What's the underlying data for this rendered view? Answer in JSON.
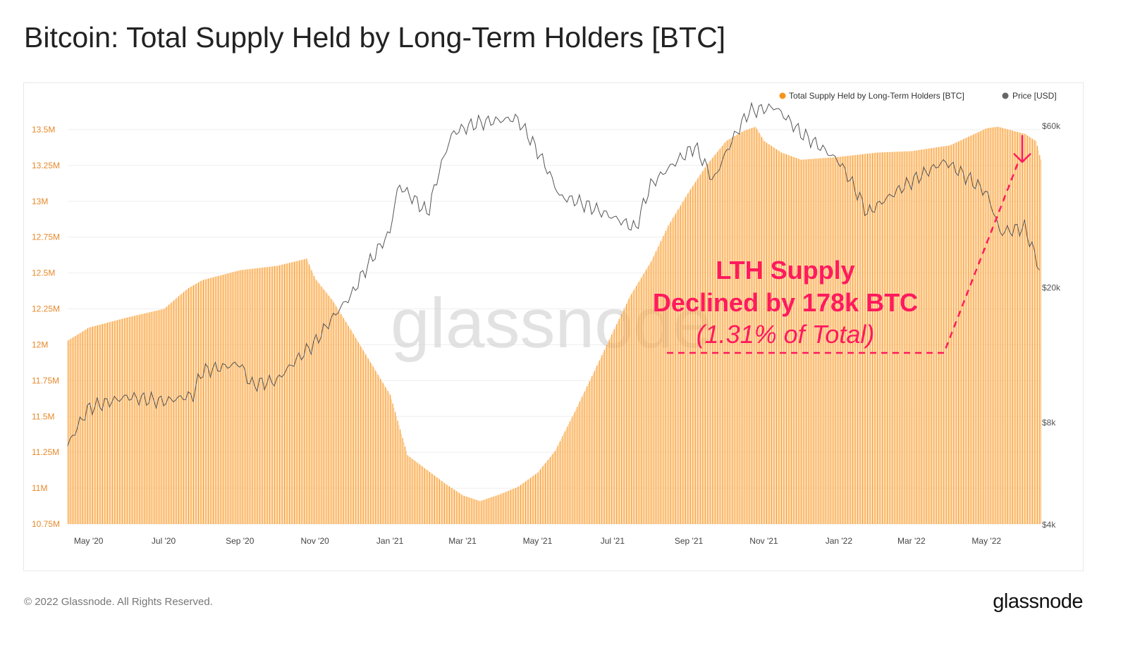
{
  "title": "Bitcoin: Total Supply Held by Long-Term Holders [BTC]",
  "footer": {
    "copyright": "© 2022 Glassnode. All Rights Reserved.",
    "logo": "glassnode",
    "watermark": "glassnode"
  },
  "chart_data": {
    "type": "bar",
    "title": "Bitcoin: Total Supply Held by Long-Term Holders [BTC]",
    "legend": {
      "placement": "top-right",
      "items": [
        {
          "label": "Total Supply Held by Long-Term Holders [BTC]",
          "color": "#f7931a"
        },
        {
          "label": "Price [USD]",
          "color": "#666666"
        }
      ]
    },
    "x_range": [
      "2020-04-14",
      "2022-06-14"
    ],
    "x_ticks": [
      {
        "date": "2020-05-01",
        "label": "May '20"
      },
      {
        "date": "2020-07-01",
        "label": "Jul '20"
      },
      {
        "date": "2020-09-01",
        "label": "Sep '20"
      },
      {
        "date": "2020-11-01",
        "label": "Nov '20"
      },
      {
        "date": "2021-01-01",
        "label": "Jan '21"
      },
      {
        "date": "2021-03-01",
        "label": "Mar '21"
      },
      {
        "date": "2021-05-01",
        "label": "May '21"
      },
      {
        "date": "2021-07-01",
        "label": "Jul '21"
      },
      {
        "date": "2021-09-01",
        "label": "Sep '21"
      },
      {
        "date": "2021-11-01",
        "label": "Nov '21"
      },
      {
        "date": "2022-01-01",
        "label": "Jan '22"
      },
      {
        "date": "2022-03-01",
        "label": "Mar '22"
      },
      {
        "date": "2022-05-01",
        "label": "May '22"
      }
    ],
    "y_left": {
      "range": [
        10750000,
        13500000
      ],
      "ticks": [
        {
          "v": 13500000,
          "label": "13.5M"
        },
        {
          "v": 13250000,
          "label": "13.25M"
        },
        {
          "v": 13000000,
          "label": "13M"
        },
        {
          "v": 12750000,
          "label": "12.75M"
        },
        {
          "v": 12500000,
          "label": "12.5M"
        },
        {
          "v": 12250000,
          "label": "12.25M"
        },
        {
          "v": 12000000,
          "label": "12M"
        },
        {
          "v": 11750000,
          "label": "11.75M"
        },
        {
          "v": 11500000,
          "label": "11.5M"
        },
        {
          "v": 11250000,
          "label": "11.25M"
        },
        {
          "v": 11000000,
          "label": "11M"
        },
        {
          "v": 10750000,
          "label": "10.75M"
        }
      ]
    },
    "y_right": {
      "scale": "log",
      "range": [
        4000,
        60000
      ],
      "ticks": [
        {
          "v": 60000,
          "label": "$60k"
        },
        {
          "v": 20000,
          "label": "$20k"
        },
        {
          "v": 8000,
          "label": "$8k"
        },
        {
          "v": 4000,
          "label": "$4k"
        }
      ]
    },
    "series": [
      {
        "name": "Total Supply Held by Long-Term Holders [BTC]",
        "type": "bar",
        "color": "#f7931a",
        "points": [
          [
            "2020-04-14",
            12030000
          ],
          [
            "2020-05-01",
            12120000
          ],
          [
            "2020-06-01",
            12190000
          ],
          [
            "2020-07-01",
            12250000
          ],
          [
            "2020-07-20",
            12390000
          ],
          [
            "2020-08-01",
            12450000
          ],
          [
            "2020-09-01",
            12520000
          ],
          [
            "2020-10-01",
            12550000
          ],
          [
            "2020-10-25",
            12600000
          ],
          [
            "2020-11-01",
            12460000
          ],
          [
            "2020-11-15",
            12310000
          ],
          [
            "2020-12-01",
            12090000
          ],
          [
            "2020-12-15",
            11890000
          ],
          [
            "2021-01-01",
            11650000
          ],
          [
            "2021-01-15",
            11230000
          ],
          [
            "2021-02-01",
            11120000
          ],
          [
            "2021-02-15",
            11030000
          ],
          [
            "2021-03-01",
            10950000
          ],
          [
            "2021-03-15",
            10910000
          ],
          [
            "2021-04-01",
            10960000
          ],
          [
            "2021-04-15",
            11010000
          ],
          [
            "2021-05-01",
            11110000
          ],
          [
            "2021-05-15",
            11260000
          ],
          [
            "2021-06-01",
            11550000
          ],
          [
            "2021-06-15",
            11800000
          ],
          [
            "2021-07-01",
            12090000
          ],
          [
            "2021-07-15",
            12340000
          ],
          [
            "2021-08-01",
            12580000
          ],
          [
            "2021-08-15",
            12830000
          ],
          [
            "2021-09-01",
            13070000
          ],
          [
            "2021-09-15",
            13250000
          ],
          [
            "2021-10-01",
            13420000
          ],
          [
            "2021-10-15",
            13490000
          ],
          [
            "2021-10-25",
            13520000
          ],
          [
            "2021-11-01",
            13420000
          ],
          [
            "2021-11-15",
            13340000
          ],
          [
            "2021-12-01",
            13290000
          ],
          [
            "2022-01-01",
            13310000
          ],
          [
            "2022-02-01",
            13340000
          ],
          [
            "2022-03-01",
            13350000
          ],
          [
            "2022-04-01",
            13390000
          ],
          [
            "2022-05-01",
            13510000
          ],
          [
            "2022-05-10",
            13520000
          ],
          [
            "2022-06-01",
            13470000
          ],
          [
            "2022-06-10",
            13420000
          ],
          [
            "2022-06-14",
            13290000
          ]
        ]
      },
      {
        "name": "Price [USD]",
        "type": "line",
        "color": "#666666",
        "points": [
          [
            "2020-04-14",
            6800
          ],
          [
            "2020-05-01",
            8800
          ],
          [
            "2020-06-01",
            9500
          ],
          [
            "2020-07-01",
            9200
          ],
          [
            "2020-07-25",
            9600
          ],
          [
            "2020-08-01",
            11300
          ],
          [
            "2020-09-01",
            11900
          ],
          [
            "2020-09-10",
            10300
          ],
          [
            "2020-10-01",
            10600
          ],
          [
            "2020-11-01",
            13700
          ],
          [
            "2020-12-01",
            19000
          ],
          [
            "2021-01-01",
            29000
          ],
          [
            "2021-01-08",
            40000
          ],
          [
            "2021-02-01",
            33000
          ],
          [
            "2021-02-21",
            57000
          ],
          [
            "2021-03-13",
            61000
          ],
          [
            "2021-04-14",
            63000
          ],
          [
            "2021-05-19",
            37000
          ],
          [
            "2021-06-01",
            36000
          ],
          [
            "2021-07-20",
            29800
          ],
          [
            "2021-08-01",
            40000
          ],
          [
            "2021-09-06",
            52000
          ],
          [
            "2021-09-21",
            41000
          ],
          [
            "2021-10-20",
            66000
          ],
          [
            "2021-11-10",
            68000
          ],
          [
            "2021-12-01",
            57000
          ],
          [
            "2022-01-01",
            47000
          ],
          [
            "2022-01-24",
            33000
          ],
          [
            "2022-03-28",
            47000
          ],
          [
            "2022-05-01",
            38000
          ],
          [
            "2022-05-12",
            29000
          ],
          [
            "2022-06-01",
            30000
          ],
          [
            "2022-06-14",
            22000
          ]
        ]
      }
    ],
    "annotations": [
      {
        "text": "LTH Supply",
        "color": "#ff1a5e"
      },
      {
        "text": "Declined by 178k BTC",
        "color": "#ff1a5e"
      },
      {
        "text": "(1.31% of Total)",
        "color": "#ff1a5e"
      }
    ]
  }
}
